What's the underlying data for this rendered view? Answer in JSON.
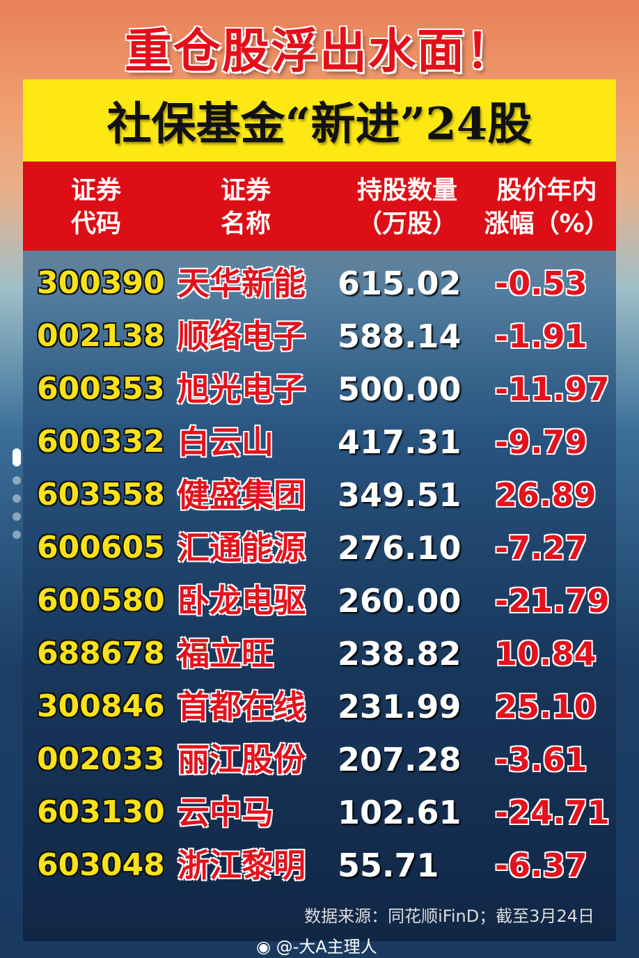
{
  "title": "重仓股浮出水面！",
  "banner": "社保基金“新进”24股",
  "headers": {
    "code": "证券\n代码",
    "name": "证券\n名称",
    "holding": "持股数量\n（万股）",
    "change": "股价年内\n涨幅（%）"
  },
  "headers_lines": {
    "code1": "证券",
    "code2": "代码",
    "name1": "证券",
    "name2": "名称",
    "hold1": "持股数量",
    "hold2": "（万股）",
    "chg1": "股价年内",
    "chg2": "涨幅（%）"
  },
  "rows": [
    {
      "code": "300390",
      "name": "天华新能",
      "holding": "615.02",
      "change": "-0.53"
    },
    {
      "code": "002138",
      "name": "顺络电子",
      "holding": "588.14",
      "change": "-1.91"
    },
    {
      "code": "600353",
      "name": "旭光电子",
      "holding": "500.00",
      "change": "-11.97"
    },
    {
      "code": "600332",
      "name": "白云山",
      "holding": "417.31",
      "change": "-9.79"
    },
    {
      "code": "603558",
      "name": "健盛集团",
      "holding": "349.51",
      "change": "26.89"
    },
    {
      "code": "600605",
      "name": "汇通能源",
      "holding": "276.10",
      "change": "-7.27"
    },
    {
      "code": "600580",
      "name": "卧龙电驱",
      "holding": "260.00",
      "change": "-21.79"
    },
    {
      "code": "688678",
      "name": "福立旺",
      "holding": "238.82",
      "change": "10.84"
    },
    {
      "code": "300846",
      "name": "首都在线",
      "holding": "231.99",
      "change": "25.10"
    },
    {
      "code": "002033",
      "name": "丽江股份",
      "holding": "207.28",
      "change": "-3.61"
    },
    {
      "code": "603130",
      "name": "云中马",
      "holding": "102.61",
      "change": "-24.71"
    },
    {
      "code": "603048",
      "name": "浙江黎明",
      "holding": "55.71",
      "change": "-6.37"
    }
  ],
  "source": "数据来源：同花顺iFinD；截至3月24日",
  "watermark": "@-大A主理人",
  "watermark_icon": "weibo-icon",
  "carousel": {
    "total": 6,
    "active": 1
  },
  "colors": {
    "title": "#e3101a",
    "banner": "#fde814",
    "header": "#dd0e16",
    "code": "#f9e21a"
  }
}
